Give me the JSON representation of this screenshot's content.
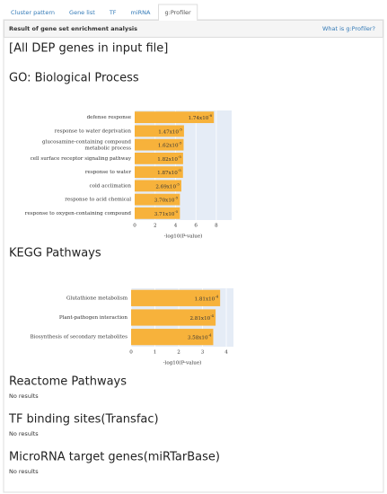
{
  "tabs": [
    "Cluster pattern",
    "Gene list",
    "TF",
    "miRNA",
    "g:Profiler"
  ],
  "panel": {
    "title": "Result of gene set enrichment analysis",
    "link": "What is g:Profiler?"
  },
  "input_title": "[All DEP genes in input file]",
  "chart_data": [
    {
      "type": "bar",
      "orientation": "horizontal",
      "title": "GO: Biological Process",
      "categories": [
        "defense response",
        "response to water deprivation",
        "glucosamine-containing compound metabolic process",
        "cell surface receptor signaling pathway",
        "response to water",
        "cold acclimation",
        "response to acid chemical",
        "response to oxygen-containing compound"
      ],
      "values": [
        7.76,
        4.83,
        4.79,
        4.74,
        4.73,
        4.57,
        4.43,
        4.43
      ],
      "value_labels": [
        {
          "base": "1.74x10",
          "exp": "-8"
        },
        {
          "base": "1.47x10",
          "exp": "-5"
        },
        {
          "base": "1.62x10",
          "exp": "-5"
        },
        {
          "base": "1.82x10",
          "exp": "-5"
        },
        {
          "base": "1.87x10",
          "exp": "-5"
        },
        {
          "base": "2.69x10",
          "exp": "-5"
        },
        {
          "base": "3.70x10",
          "exp": "-5"
        },
        {
          "base": "3.71x10",
          "exp": "-5"
        }
      ],
      "color": "#f7b23b",
      "x_label": "-log10(P-value)",
      "xlim": [
        0,
        9.5
      ],
      "xticks": [
        0,
        2,
        4,
        6,
        8
      ],
      "grid": true
    },
    {
      "type": "bar",
      "orientation": "horizontal",
      "title": "KEGG Pathways",
      "categories": [
        "Glutathione metabolism",
        "Plant-pathogen interaction",
        "Biosynthesis of secondary metabolites"
      ],
      "values": [
        3.74,
        3.55,
        3.45
      ],
      "value_labels": [
        {
          "base": "1.81x10",
          "exp": "-4"
        },
        {
          "base": "2.81x10",
          "exp": "-4"
        },
        {
          "base": "3.58x10",
          "exp": "-4"
        }
      ],
      "color": "#f7b23b",
      "x_label": "-log10(P-value)",
      "xlim": [
        0,
        4.3
      ],
      "xticks": [
        0,
        1,
        2,
        3,
        4
      ],
      "grid": true
    }
  ],
  "sections": [
    {
      "heading": "Reactome Pathways",
      "message": "No results"
    },
    {
      "heading": "TF binding sites(Transfac)",
      "message": "No results"
    },
    {
      "heading": "MicroRNA target genes(miRTarBase)",
      "message": "No results"
    }
  ]
}
